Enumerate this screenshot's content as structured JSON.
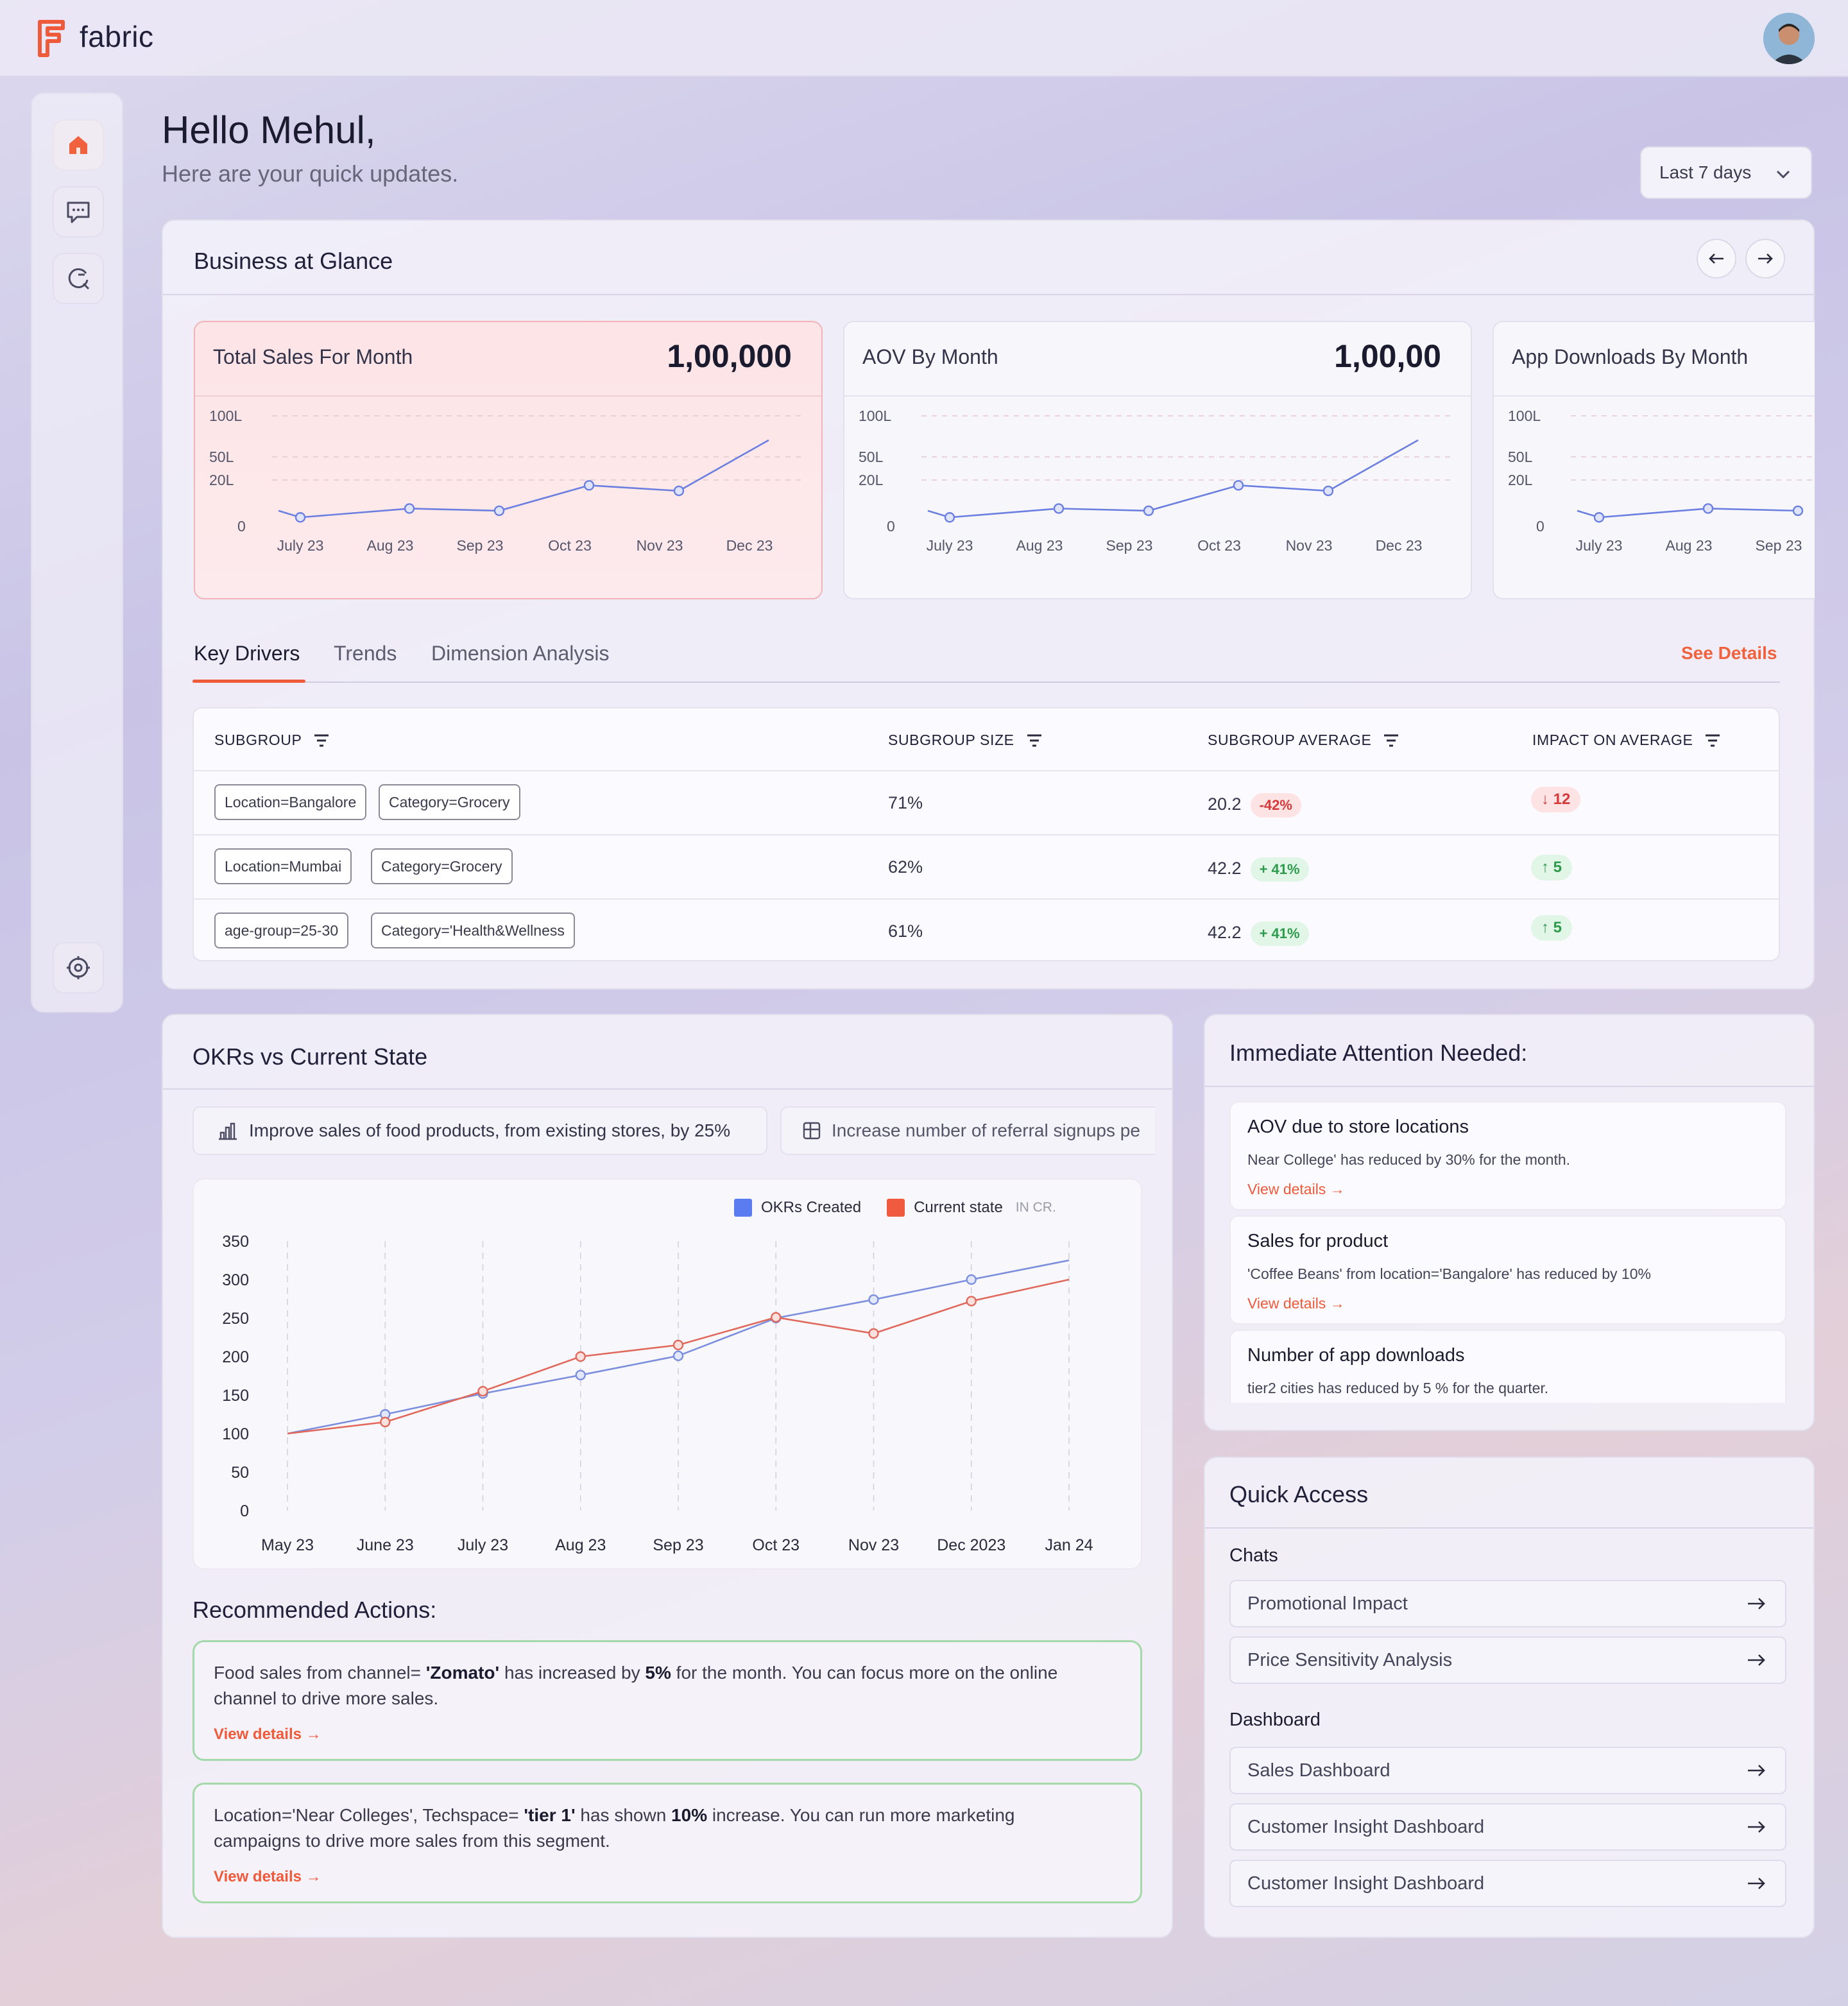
{
  "app": {
    "name": "fabric"
  },
  "greeting": {
    "title": "Hello Mehul,",
    "subtitle": "Here are your quick updates."
  },
  "date_range": {
    "selected": "Last 7 days"
  },
  "glance": {
    "title": "Business at Glance",
    "cards": [
      {
        "title": "Total Sales For Month",
        "value": "1,00,000",
        "highlighted": true
      },
      {
        "title": "AOV By Month",
        "value": "1,00,00",
        "highlighted": false
      },
      {
        "title": "App Downloads By Month",
        "value": "",
        "highlighted": false
      }
    ]
  },
  "tabs": {
    "items": [
      "Key Drivers",
      "Trends",
      "Dimension Analysis"
    ],
    "active": "Key Drivers",
    "see_details": "See Details"
  },
  "table": {
    "headers": [
      "SUBGROUP",
      "SUBGROUP SIZE",
      "SUBGROUP AVERAGE",
      "IMPACT ON AVERAGE"
    ],
    "rows": [
      {
        "tags": [
          "Location=Bangalore",
          "Category=Grocery"
        ],
        "size": "71%",
        "average": "20.2",
        "avg_change": "-42%",
        "avg_dir": "down",
        "impact": "12",
        "impact_dir": "down"
      },
      {
        "tags": [
          "Location=Mumbai",
          "Category=Grocery"
        ],
        "size": "62%",
        "average": "42.2",
        "avg_change": "+ 41%",
        "avg_dir": "up",
        "impact": "5",
        "impact_dir": "up"
      },
      {
        "tags": [
          "age-group=25-30",
          "Category='Health&Wellness"
        ],
        "size": "61%",
        "average": "42.2",
        "avg_change": "+ 41%",
        "avg_dir": "up",
        "impact": "5",
        "impact_dir": "up"
      }
    ]
  },
  "okr": {
    "title": "OKRs vs Current State",
    "pills": [
      "Improve sales of food products, from existing stores, by 25%",
      "Increase number of referral signups pe"
    ],
    "legend": {
      "created": "OKRs Created",
      "current": "Current state",
      "unit": "IN CR."
    }
  },
  "recommended": {
    "title": "Recommended Actions:",
    "items": [
      {
        "pre": "Food sales from channel= ",
        "b1": "'Zomato'",
        "mid": " has increased by ",
        "b2": "5%",
        "post": " for the month. You can focus more on the online channel to drive more sales.",
        "link": "View details"
      },
      {
        "pre": "Location='Near Colleges', Techspace= ",
        "b1": "'tier 1'",
        "mid": " has shown ",
        "b2": "10%",
        "post": " increase. You can run more marketing campaigns to drive more sales from this segment.",
        "link": "View details"
      }
    ]
  },
  "attention": {
    "title": "Immediate Attention Needed:",
    "items": [
      {
        "title": "AOV due to store locations",
        "desc": "Near College' has reduced by 30% for the month.",
        "link": "View details"
      },
      {
        "title": "Sales for product",
        "desc": "'Coffee Beans' from location='Bangalore' has reduced by 10%",
        "link": "View details"
      },
      {
        "title": "Number of app downloads",
        "desc": "tier2 cities has reduced by 5 % for the quarter.",
        "link": ""
      }
    ]
  },
  "quick_access": {
    "title": "Quick Access",
    "chats_label": "Chats",
    "chats": [
      "Promotional Impact",
      "Price Sensitivity Analysis"
    ],
    "dashboard_label": "Dashboard",
    "dashboards": [
      "Sales Dashboard",
      "Customer Insight Dashboard",
      "Customer Insight Dashboard"
    ]
  },
  "colors": {
    "accent": "#f0623e",
    "okr_line": "#7b8fde",
    "current_line": "#e0695c",
    "positive": "#2e9b4c",
    "negative": "#d63a3a"
  },
  "icons": {
    "sidebar": [
      "home-icon",
      "chat-icon",
      "refresh-search-icon",
      "settings-cloud-icon"
    ],
    "nav": [
      "arrow-left-icon",
      "arrow-right-icon"
    ]
  },
  "chart_data": [
    {
      "type": "line",
      "title": "Total Sales For Month",
      "categories": [
        "July 23",
        "Aug 23",
        "Sep 23",
        "Oct 23",
        "Nov 23",
        "Dec 23"
      ],
      "y_ticks": [
        "0",
        "20L",
        "50L",
        "100L"
      ],
      "grid": true,
      "series": [
        {
          "values": [
            8,
            16,
            14,
            37,
            32,
            78
          ]
        }
      ],
      "x_start_offset": true
    },
    {
      "type": "line",
      "title": "AOV By Month",
      "categories": [
        "July 23",
        "Aug 23",
        "Sep 23",
        "Oct 23",
        "Nov 23",
        "Dec 23"
      ],
      "y_ticks": [
        "0",
        "20L",
        "50L",
        "100L"
      ],
      "grid": true,
      "series": [
        {
          "values": [
            8,
            16,
            14,
            37,
            32,
            78
          ]
        }
      ]
    },
    {
      "type": "line",
      "title": "App Downloads By Month",
      "categories": [
        "July 23",
        "Aug 23",
        "Sep 23"
      ],
      "y_ticks": [
        "0",
        "20L",
        "50L",
        "100L"
      ],
      "grid": true,
      "series": [
        {
          "values": [
            8,
            16,
            14
          ]
        }
      ]
    },
    {
      "type": "line",
      "title": "",
      "categories": [
        "May 23",
        "June 23",
        "July 23",
        "Aug 23",
        "Sep 23",
        "Oct 23",
        "Nov 23",
        "Dec 2023",
        "Jan 24"
      ],
      "ylim": [
        0,
        350
      ],
      "y_ticks": [
        "0",
        "50",
        "100",
        "150",
        "200",
        "250",
        "300",
        "350"
      ],
      "legend": "top-right",
      "series": [
        {
          "name": "OKRs Created",
          "values": [
            100,
            125,
            152,
            176,
            201,
            250,
            274,
            300,
            325
          ]
        },
        {
          "name": "Current state",
          "values": [
            100,
            115,
            155,
            200,
            215,
            251,
            230,
            272,
            300
          ]
        }
      ]
    }
  ]
}
